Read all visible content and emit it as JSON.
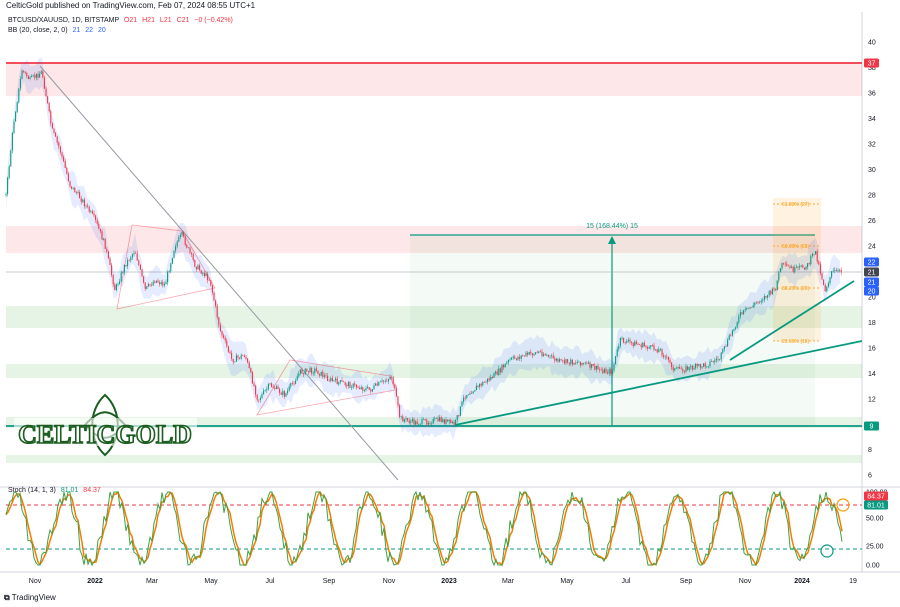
{
  "header": {
    "publisher": "CelticGold published on TradingView.com, Feb 07, 2024 08:55 UTC+1"
  },
  "legend": {
    "symbol": "BTCUSD/XAUUSD, 1D, BITSTAMP",
    "ohlc": [
      "O21",
      "H21",
      "L21",
      "C21",
      "−0 (−0.42%)"
    ],
    "bb_label": "BB (20, close, 2, 0)",
    "bb_values": [
      "21",
      "22",
      "20"
    ]
  },
  "stoch_legend": {
    "label": "Stoch (14, 1, 3)",
    "k": "81.01",
    "d": "84.37"
  },
  "price_axis": {
    "ticks": [
      "40",
      "38",
      "36",
      "34",
      "32",
      "30",
      "28",
      "26",
      "24",
      "22",
      "20",
      "18",
      "16",
      "14",
      "12",
      "10",
      "8",
      "6"
    ],
    "badges": [
      {
        "text": "37",
        "color": "#f23645"
      },
      {
        "text": "22",
        "color": "#2962ff"
      },
      {
        "text": "21",
        "color": "#434651"
      },
      {
        "text": "21",
        "color": "#2962ff"
      },
      {
        "text": "20",
        "color": "#2962ff"
      },
      {
        "text": "9",
        "color": "#089981"
      }
    ]
  },
  "stoch_axis": {
    "ticks": [
      "100.00",
      "75.00",
      "50.00",
      "25.00",
      "0.00"
    ],
    "badges": [
      {
        "text": "84.37",
        "color": "#f23645"
      },
      {
        "text": "81.01",
        "color": "#089981"
      }
    ]
  },
  "time_axis": [
    "Nov",
    "2022",
    "Mar",
    "May",
    "Jul",
    "Sep",
    "Nov",
    "2023",
    "Mar",
    "May",
    "Jul",
    "Sep",
    "Nov",
    "2024",
    "19"
  ],
  "measure_label": "15 (168.44%) 15",
  "fib_levels": [
    "61.80% (27)",
    "50.00% (23)",
    "38.20% (20)",
    "23.60% (16)"
  ],
  "logo_text": "CELTICGOLD",
  "footer": {
    "brand": "TradingView"
  },
  "colors": {
    "up": "#089981",
    "down": "#f23645",
    "bb": "#2962ff",
    "trend": "#089981"
  }
}
